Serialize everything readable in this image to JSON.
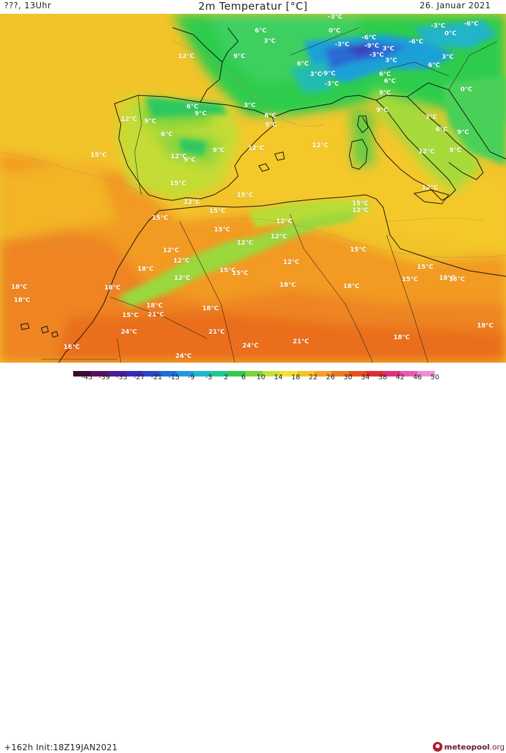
{
  "header": {
    "run_label": "???, 13Uhr",
    "title": "2m Temperatur [°C]",
    "date": "26. Januar 2021"
  },
  "footer": {
    "forecast": "+162h",
    "init": "Init:18Z19JAN2021",
    "brand": "meteopool",
    "brand_tld": ".org"
  },
  "colorbar": {
    "labels": [
      "-45",
      "-39",
      "-33",
      "-27",
      "-21",
      "-15",
      "-9",
      "-3",
      "2",
      "6",
      "10",
      "14",
      "18",
      "22",
      "26",
      "30",
      "34",
      "38",
      "42",
      "46",
      "50"
    ],
    "colors": [
      "#3a0a30",
      "#5a1060",
      "#4a1a9a",
      "#3a2ab8",
      "#2a48c8",
      "#1e6ed8",
      "#1f9ae0",
      "#20b8c8",
      "#20c890",
      "#2dcc4a",
      "#7ad43a",
      "#c6e036",
      "#f2e030",
      "#f5c42a",
      "#f4a024",
      "#ef7a20",
      "#e8521e",
      "#e02c30",
      "#e0307a",
      "#e85ab4",
      "#f28ed8"
    ]
  },
  "map_labels": [
    "12°C",
    "9°C",
    "6°C",
    "3°C",
    "-3°C",
    "0°C",
    "-6°C",
    "-9°C",
    "6°C",
    "3°C",
    "-3°C",
    "0°C",
    "-6°C",
    "3°C",
    "-3°C",
    "-9°C",
    "-3°C",
    "6°C",
    "9°C",
    "3°C",
    "-3°C",
    "6°C",
    "6°C",
    "-6°C",
    "3°C",
    "6°C",
    "0°C",
    "9°C",
    "9°C",
    "3°C",
    "6°C",
    "9°C",
    "3°C",
    "6°C",
    "9°C",
    "12°C",
    "9°C",
    "6°C",
    "12°C",
    "9°C",
    "15°C",
    "9°C",
    "12°C",
    "12°C",
    "12°C",
    "9°C",
    "12°C",
    "15°C",
    "12°C",
    "15°C",
    "15°C",
    "15°C",
    "15°C",
    "12°C",
    "12°C",
    "12°C",
    "15°C",
    "12°C",
    "15°C",
    "12°C",
    "12°C",
    "15°C",
    "18°C",
    "18°C",
    "12°C",
    "15°C",
    "15°C",
    "15°C",
    "18°C",
    "18°C",
    "18°C",
    "18°C",
    "18°C",
    "18°C",
    "15°C",
    "21°C",
    "24°C",
    "21°C",
    "18°C",
    "18°C",
    "24°C",
    "21°C",
    "24°C",
    "18°C",
    "15°C",
    "18°C",
    "12°C"
  ]
}
